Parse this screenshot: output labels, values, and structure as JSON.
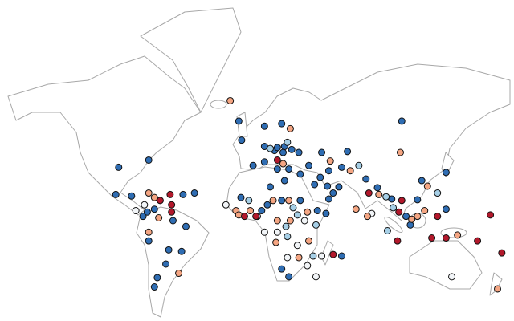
{
  "map": {
    "groups": [
      {
        "color": "#2f6db3",
        "points": [
          [
            -90,
            35
          ],
          [
            -69,
            39
          ],
          [
            -92,
            18
          ],
          [
            -81,
            17
          ],
          [
            -45,
            18
          ],
          [
            -37,
            19
          ],
          [
            -73,
            3
          ],
          [
            -70,
            6
          ],
          [
            -65,
            8
          ],
          [
            -52,
            0
          ],
          [
            -69,
            -14
          ],
          [
            -43,
            -4
          ],
          [
            -46,
            -21
          ],
          [
            -55,
            -20
          ],
          [
            -57,
            -29
          ],
          [
            -63,
            -37
          ],
          [
            -65,
            -42
          ],
          [
            -6,
            57
          ],
          [
            12,
            55
          ],
          [
            24,
            56
          ],
          [
            -4,
            49
          ],
          [
            12,
            46
          ],
          [
            19,
            44
          ],
          [
            21,
            45.5
          ],
          [
            25,
            43
          ],
          [
            26,
            46
          ],
          [
            31,
            44.5
          ],
          [
            36,
            43
          ],
          [
            21,
            34
          ],
          [
            29,
            34
          ],
          [
            12,
            38
          ],
          [
            4,
            36
          ],
          [
            43,
            36
          ],
          [
            37,
            31
          ],
          [
            51,
            29
          ],
          [
            56,
            23.5
          ],
          [
            47,
            24.5
          ],
          [
            57,
            33
          ],
          [
            66,
            35
          ],
          [
            70,
            43.5
          ],
          [
            83,
            28
          ],
          [
            91,
            22.5
          ],
          [
            101,
            15
          ],
          [
            111,
            3
          ],
          [
            139,
            8
          ],
          [
            139,
            32
          ],
          [
            122,
            27
          ],
          [
            119,
            14.5
          ],
          [
            108,
            57
          ],
          [
            114,
            -3
          ],
          [
            64,
            23
          ],
          [
            60,
            19
          ],
          [
            57,
            15
          ],
          [
            52,
            43
          ],
          [
            10,
            7
          ],
          [
            14,
            11
          ],
          [
            24,
            14
          ],
          [
            37,
            14
          ],
          [
            49,
            7
          ],
          [
            55,
            5
          ],
          [
            24,
            -32
          ],
          [
            29,
            -36.5
          ],
          [
            66,
            -24
          ],
          [
            26,
            27
          ],
          [
            16,
            23
          ],
          [
            -4.5,
            16
          ]
        ]
      },
      {
        "color": "#a6cfe6",
        "points": [
          [
            16,
            45
          ],
          [
            28,
            48
          ],
          [
            78,
            36
          ],
          [
            97,
            16.5
          ],
          [
            102,
            9
          ],
          [
            133,
            19
          ],
          [
            98,
            -7
          ],
          [
            7,
            3
          ],
          [
            48,
            -3
          ],
          [
            35,
            4
          ],
          [
            27,
            -4
          ],
          [
            28,
            -11
          ],
          [
            46,
            -24
          ],
          [
            32,
            9
          ],
          [
            1,
            14
          ]
        ]
      },
      {
        "color": "#f2f5f8",
        "points": [
          [
            -72,
            11
          ],
          [
            -78,
            7
          ],
          [
            -15,
            11
          ],
          [
            40,
            0
          ],
          [
            21,
            -8
          ],
          [
            35,
            -17
          ],
          [
            28,
            -25
          ],
          [
            12,
            -8
          ],
          [
            42,
            -30
          ],
          [
            48,
            -36.5
          ],
          [
            52,
            -24
          ],
          [
            87,
            5
          ],
          [
            143,
            -36.5
          ]
        ]
      },
      {
        "color": "#f4a582",
        "points": [
          [
            -69,
            19
          ],
          [
            -65,
            16
          ],
          [
            -62,
            2
          ],
          [
            -69,
            -8
          ],
          [
            -48,
            -34.5
          ],
          [
            -12,
            64
          ],
          [
            30,
            54
          ],
          [
            25,
            37
          ],
          [
            72,
            33
          ],
          [
            92,
            18
          ],
          [
            115,
            1
          ],
          [
            119,
            3
          ],
          [
            124,
            7
          ],
          [
            126,
            23.5
          ],
          [
            107,
            43
          ],
          [
            147,
            -10
          ],
          [
            175,
            -43
          ],
          [
            84,
            3
          ],
          [
            76,
            8
          ],
          [
            -8,
            7
          ],
          [
            -6,
            4
          ],
          [
            2,
            7
          ],
          [
            18,
            14
          ],
          [
            29,
            14
          ],
          [
            42,
            6
          ],
          [
            30,
            0
          ],
          [
            36,
            -25
          ],
          [
            43,
            -14
          ],
          [
            20,
            -15
          ],
          [
            21,
            0
          ],
          [
            58,
            38.5
          ]
        ]
      },
      {
        "color": "#b2182b",
        "points": [
          [
            -61,
            14
          ],
          [
            -54,
            18
          ],
          [
            -53,
            11
          ],
          [
            -53,
            6
          ],
          [
            21,
            39
          ],
          [
            85,
            19
          ],
          [
            106,
            6
          ],
          [
            108,
            14
          ],
          [
            133,
            3
          ],
          [
            105,
            -14
          ],
          [
            129,
            -12
          ],
          [
            139,
            -12
          ],
          [
            161,
            -14
          ],
          [
            170,
            4
          ],
          [
            178,
            -22
          ],
          [
            -2,
            3
          ],
          [
            6,
            3
          ],
          [
            60,
            -23
          ]
        ]
      }
    ]
  }
}
